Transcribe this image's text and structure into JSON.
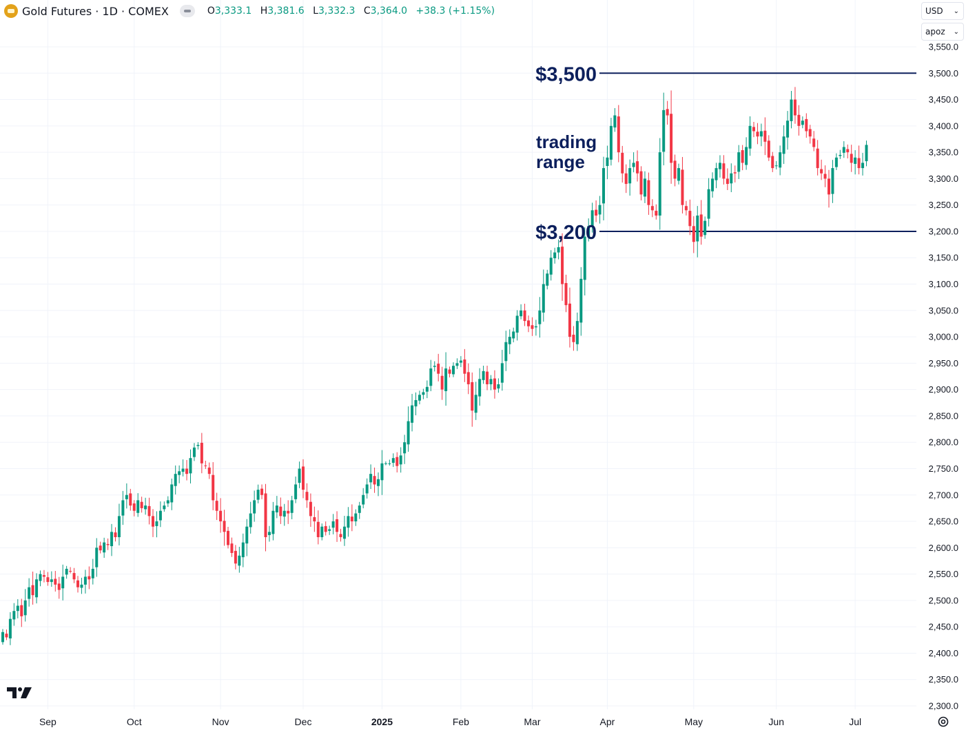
{
  "header": {
    "title": "Gold Futures · 1D · COMEX",
    "o_label": "O",
    "o_value": "3,333.1",
    "h_label": "H",
    "h_value": "3,381.6",
    "l_label": "L",
    "l_value": "3,332.3",
    "c_label": "C",
    "c_value": "3,364.0",
    "change": "+38.3 (+1.15%)"
  },
  "controls": {
    "currency": "USD",
    "unit": "apoz"
  },
  "icons": {
    "logo": "gold-bar-icon",
    "toggle": "visibility-pill-icon",
    "brand": "tradingview-logo-icon",
    "settings": "settings-icon"
  },
  "colors": {
    "up": "#089981",
    "down": "#f23645",
    "annotation": "#0c1f5c",
    "grid": "#f0f3fa",
    "axis_text": "#131722"
  },
  "chart_data": {
    "type": "candlestick",
    "y_axis": {
      "ticks": [
        "2,300.0",
        "2,350.0",
        "2,400.0",
        "2,450.0",
        "2,500.0",
        "2,550.0",
        "2,600.0",
        "2,650.0",
        "2,700.0",
        "2,750.0",
        "2,800.0",
        "2,850.0",
        "2,900.0",
        "2,950.0",
        "3,000.0",
        "3,050.0",
        "3,100.0",
        "3,150.0",
        "3,200.0",
        "3,250.0",
        "3,300.0",
        "3,350.0",
        "3,400.0",
        "3,450.0",
        "3,500.0",
        "3,550.0"
      ],
      "range": [
        2300,
        3550
      ]
    },
    "x_axis": {
      "labels": [
        "Sep",
        "Oct",
        "Nov",
        "Dec",
        "2025",
        "Feb",
        "Mar",
        "Apr",
        "May",
        "Jun",
        "Jul"
      ],
      "bold_label": "2025",
      "label_bar_index": [
        12,
        35,
        58,
        80,
        101,
        122,
        141,
        161,
        184,
        206,
        227
      ]
    },
    "horizontal_lines": [
      {
        "label": "$3,500",
        "value": 3500
      },
      {
        "label": "$3,200",
        "value": 3200
      }
    ],
    "annotation": {
      "line1": "trading",
      "line2": "range"
    },
    "closes": [
      2440,
      2430,
      2465,
      2480,
      2490,
      2470,
      2500,
      2525,
      2510,
      2540,
      2550,
      2545,
      2535,
      2540,
      2530,
      2520,
      2545,
      2560,
      2555,
      2540,
      2525,
      2530,
      2545,
      2540,
      2560,
      2600,
      2595,
      2610,
      2605,
      2630,
      2620,
      2660,
      2690,
      2700,
      2680,
      2670,
      2690,
      2675,
      2680,
      2660,
      2640,
      2650,
      2670,
      2680,
      2690,
      2720,
      2740,
      2745,
      2750,
      2740,
      2770,
      2790,
      2795,
      2760,
      2755,
      2740,
      2690,
      2670,
      2650,
      2630,
      2605,
      2590,
      2570,
      2585,
      2610,
      2640,
      2665,
      2690,
      2710,
      2700,
      2620,
      2630,
      2670,
      2680,
      2660,
      2670,
      2665,
      2690,
      2720,
      2750,
      2710,
      2690,
      2660,
      2650,
      2620,
      2640,
      2630,
      2635,
      2650,
      2630,
      2620,
      2640,
      2660,
      2650,
      2665,
      2680,
      2700,
      2720,
      2740,
      2720,
      2730,
      2760,
      2760,
      2760,
      2770,
      2755,
      2775,
      2800,
      2840,
      2870,
      2880,
      2890,
      2895,
      2905,
      2940,
      2945,
      2930,
      2900,
      2940,
      2930,
      2945,
      2950,
      2955,
      2930,
      2910,
      2860,
      2890,
      2920,
      2935,
      2910,
      2920,
      2900,
      2910,
      2950,
      2990,
      3000,
      3010,
      3040,
      3050,
      3030,
      3020,
      3015,
      3020,
      3050,
      3100,
      3120,
      3150,
      3160,
      3170,
      3100,
      3060,
      3000,
      2990,
      3030,
      3110,
      3190,
      3210,
      3240,
      3230,
      3250,
      3320,
      3340,
      3400,
      3420,
      3350,
      3310,
      3290,
      3320,
      3330,
      3310,
      3270,
      3300,
      3250,
      3240,
      3230,
      3350,
      3430,
      3420,
      3330,
      3300,
      3320,
      3250,
      3240,
      3210,
      3180,
      3230,
      3190,
      3220,
      3280,
      3300,
      3320,
      3330,
      3300,
      3290,
      3310,
      3310,
      3350,
      3330,
      3360,
      3400,
      3390,
      3380,
      3390,
      3370,
      3340,
      3320,
      3325,
      3350,
      3380,
      3410,
      3450,
      3420,
      3400,
      3410,
      3390,
      3380,
      3360,
      3320,
      3310,
      3300,
      3270,
      3320,
      3340,
      3345,
      3360,
      3350,
      3330,
      3340,
      3320,
      3330,
      3364
    ]
  }
}
